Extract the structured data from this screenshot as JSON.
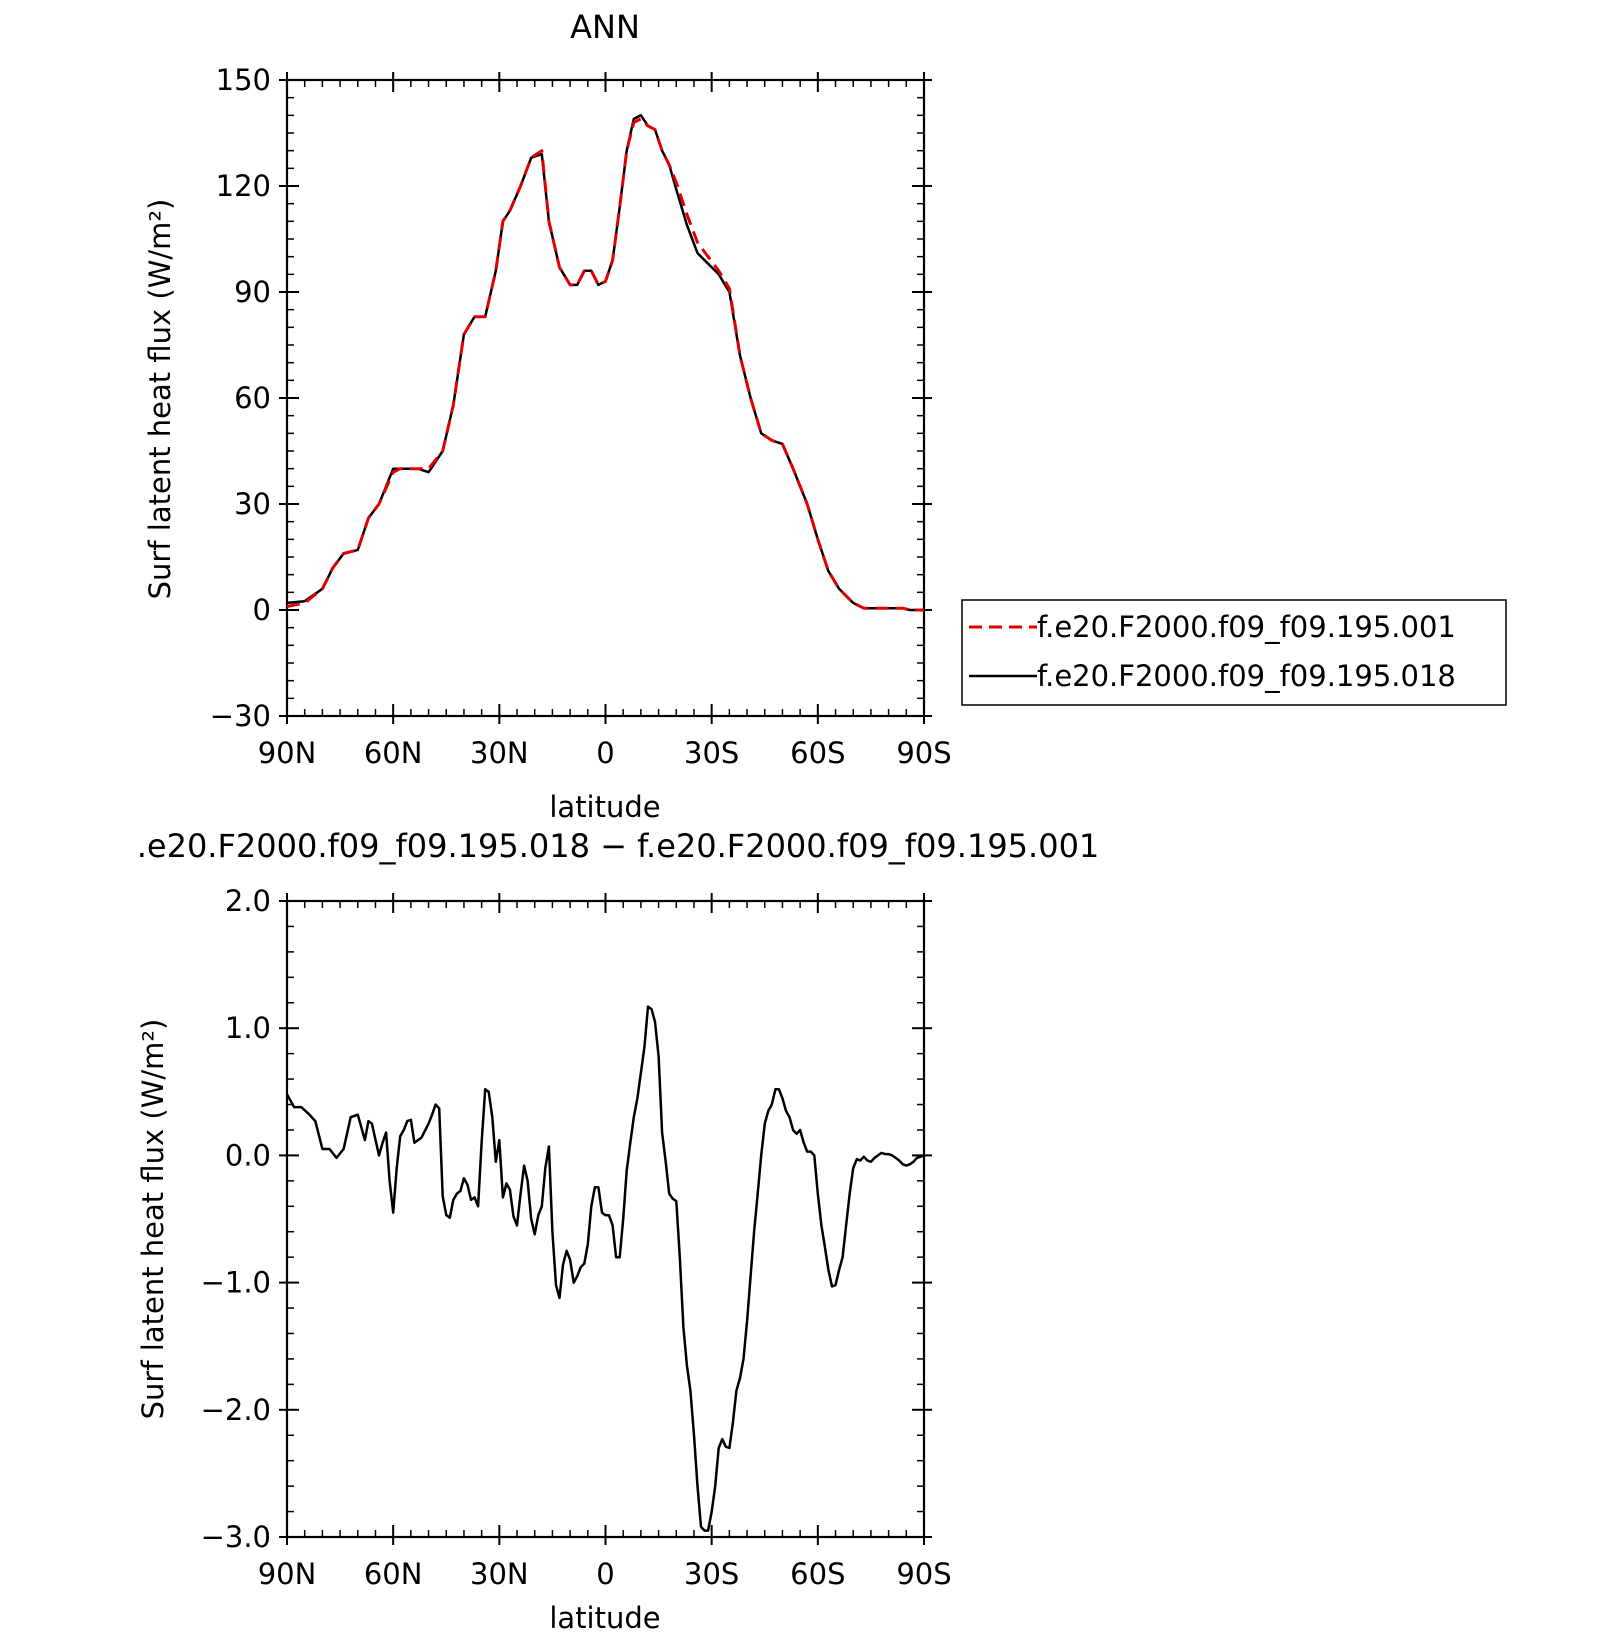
{
  "chart_data": [
    {
      "type": "line",
      "title": "ANN",
      "xlabel": "latitude",
      "ylabel": "Surf latent heat flux (W/m²)",
      "xlim": [
        90,
        -90
      ],
      "ylim": [
        -30,
        150
      ],
      "x_tick_labels": [
        "90N",
        "60N",
        "30N",
        "0",
        "30S",
        "60S",
        "90S"
      ],
      "y_tick_labels": [
        "150",
        "120",
        "90",
        "60",
        "30",
        "0",
        "−30"
      ],
      "legend_position": "right",
      "series": [
        {
          "name": "f.e20.F2000.f09_f09.195.001",
          "color": "#e00000",
          "dash": "dashed",
          "x": [
            90,
            85,
            80,
            77,
            74,
            70,
            67,
            64,
            60,
            58,
            56,
            53,
            50,
            46,
            43,
            40,
            37,
            34,
            31,
            29,
            27,
            24,
            21,
            18,
            16,
            13,
            10,
            8,
            6,
            4,
            2,
            0,
            -2,
            -4,
            -6,
            -8,
            -10,
            -12,
            -14,
            -16,
            -18,
            -20,
            -23,
            -26,
            -29,
            -32,
            -35,
            -38,
            -41,
            -44,
            -47,
            -50,
            -53,
            -57,
            -60,
            -63,
            -66,
            -68,
            -70,
            -73,
            -76,
            -78,
            -80,
            -82,
            -84,
            -86,
            -88,
            -90
          ],
          "values": [
            1,
            2,
            6,
            12,
            16,
            17,
            26,
            30,
            39,
            40,
            40,
            40,
            40,
            45,
            58,
            78,
            83,
            83,
            96,
            110,
            113,
            120,
            128,
            130,
            110,
            97,
            92,
            92,
            96,
            96,
            92,
            93,
            99,
            114,
            130,
            138,
            139,
            137,
            136,
            130,
            126,
            121,
            112,
            104,
            100,
            96,
            91,
            72,
            60,
            50,
            48,
            47,
            40,
            30,
            20,
            11,
            6,
            4,
            2,
            0.5,
            0.5,
            0.5,
            0.5,
            0.5,
            0.5,
            0,
            0,
            0
          ]
        },
        {
          "name": "f.e20.F2000.f09_f09.195.018",
          "color": "#000000",
          "dash": "solid",
          "x": [
            90,
            85,
            80,
            77,
            74,
            70,
            67,
            64,
            60,
            58,
            56,
            53,
            50,
            46,
            43,
            40,
            37,
            34,
            31,
            29,
            27,
            24,
            21,
            18,
            16,
            13,
            10,
            8,
            6,
            4,
            2,
            0,
            -2,
            -4,
            -6,
            -8,
            -10,
            -12,
            -14,
            -16,
            -18,
            -20,
            -23,
            -26,
            -29,
            -32,
            -35,
            -38,
            -41,
            -44,
            -47,
            -50,
            -53,
            -57,
            -60,
            -63,
            -66,
            -68,
            -70,
            -73,
            -76,
            -78,
            -80,
            -82,
            -84,
            -86,
            -88,
            -90
          ],
          "values": [
            2,
            2.5,
            6,
            12,
            16,
            17,
            26,
            30,
            40,
            40,
            40,
            40,
            39,
            45,
            58,
            78,
            83,
            83,
            96,
            110,
            113,
            120,
            128,
            129,
            110,
            97,
            92,
            92,
            96,
            96,
            92,
            93,
            99,
            114,
            130,
            139,
            140,
            137,
            136,
            130,
            126,
            119,
            109,
            101,
            98,
            95,
            90,
            72,
            60,
            50,
            48,
            47,
            40,
            30,
            20,
            11,
            6,
            4,
            2,
            0.5,
            0.5,
            0.5,
            0.5,
            0.5,
            0.5,
            0,
            0,
            0
          ]
        }
      ]
    },
    {
      "type": "line",
      "title": ".e20.F2000.f09_f09.195.018 − f.e20.F2000.f09_f09.195.001",
      "xlabel": "latitude",
      "ylabel": "Surf latent heat flux (W/m²)",
      "xlim": [
        90,
        -90
      ],
      "ylim": [
        -3.0,
        2.0
      ],
      "x_tick_labels": [
        "90N",
        "60N",
        "30N",
        "0",
        "30S",
        "60S",
        "90S"
      ],
      "y_tick_labels": [
        "2.0",
        "1.0",
        "0.0",
        "−1.0",
        "−2.0",
        "−3.0"
      ],
      "series": [
        {
          "color": "#000000",
          "dash": "solid",
          "x": [
            90,
            88,
            86,
            84,
            82,
            80,
            78,
            76,
            74,
            72,
            70,
            68,
            67,
            66,
            64,
            63,
            62,
            61,
            60,
            59,
            58,
            57,
            56,
            55,
            54,
            52,
            50,
            49,
            48,
            47,
            46,
            45,
            44,
            43,
            42,
            41,
            40,
            39,
            38,
            37,
            36,
            35,
            34,
            33,
            32,
            31,
            30,
            29,
            28,
            27,
            26,
            25,
            24,
            23,
            22,
            21,
            20,
            19,
            18,
            17,
            16,
            15,
            14,
            13,
            12,
            11,
            10,
            9,
            8,
            7,
            6,
            5,
            4,
            3,
            2,
            1,
            0,
            -1,
            -2,
            -3,
            -4,
            -5,
            -6,
            -7,
            -8,
            -9,
            -10,
            -11,
            -12,
            -13,
            -14,
            -15,
            -16,
            -17,
            -18,
            -19,
            -20,
            -21,
            -22,
            -23,
            -24,
            -25,
            -26,
            -27,
            -28,
            -29,
            -30,
            -31,
            -32,
            -33,
            -34,
            -35,
            -36,
            -37,
            -38,
            -39,
            -40,
            -41,
            -42,
            -43,
            -44,
            -45,
            -46,
            -47,
            -48,
            -49,
            -50,
            -51,
            -52,
            -53,
            -54,
            -55,
            -56,
            -57,
            -58,
            -59,
            -60,
            -61,
            -62,
            -63,
            -64,
            -65,
            -66,
            -67,
            -68,
            -69,
            -70,
            -71,
            -72,
            -73,
            -74,
            -75,
            -76,
            -77,
            -78,
            -79,
            -80,
            -81,
            -82,
            -83,
            -84,
            -85,
            -86,
            -87,
            -88,
            -89,
            -90
          ],
          "values": [
            0.48,
            0.38,
            0.38,
            0.33,
            0.27,
            0.05,
            0.05,
            -0.02,
            0.05,
            0.3,
            0.32,
            0.12,
            0.27,
            0.25,
            0.0,
            0.1,
            0.18,
            -0.2,
            -0.45,
            -0.1,
            0.15,
            0.2,
            0.27,
            0.28,
            0.1,
            0.14,
            0.25,
            0.32,
            0.4,
            0.37,
            -0.32,
            -0.47,
            -0.49,
            -0.35,
            -0.3,
            -0.28,
            -0.18,
            -0.23,
            -0.35,
            -0.33,
            -0.4,
            0.1,
            0.52,
            0.5,
            0.3,
            -0.05,
            0.12,
            -0.33,
            -0.22,
            -0.27,
            -0.48,
            -0.55,
            -0.3,
            -0.08,
            -0.2,
            -0.5,
            -0.62,
            -0.47,
            -0.4,
            -0.1,
            0.07,
            -0.6,
            -1.02,
            -1.12,
            -0.86,
            -0.75,
            -0.82,
            -1.0,
            -0.95,
            -0.88,
            -0.85,
            -0.7,
            -0.4,
            -0.25,
            -0.25,
            -0.45,
            -0.47,
            -0.47,
            -0.55,
            -0.8,
            -0.8,
            -0.5,
            -0.12,
            0.1,
            0.3,
            0.45,
            0.65,
            0.85,
            1.17,
            1.15,
            1.05,
            0.78,
            0.18,
            -0.05,
            -0.3,
            -0.34,
            -0.36,
            -0.8,
            -1.35,
            -1.65,
            -1.85,
            -2.2,
            -2.6,
            -2.92,
            -2.95,
            -2.95,
            -2.8,
            -2.6,
            -2.3,
            -2.23,
            -2.29,
            -2.3,
            -2.1,
            -1.85,
            -1.75,
            -1.6,
            -1.3,
            -0.95,
            -0.6,
            -0.3,
            0.0,
            0.25,
            0.35,
            0.4,
            0.52,
            0.52,
            0.45,
            0.35,
            0.3,
            0.2,
            0.17,
            0.2,
            0.1,
            0.03,
            0.03,
            0.0,
            -0.3,
            -0.55,
            -0.72,
            -0.9,
            -1.03,
            -1.02,
            -0.9,
            -0.8,
            -0.55,
            -0.3,
            -0.1,
            -0.03,
            -0.04,
            -0.01,
            -0.04,
            -0.05,
            -0.02,
            0.0,
            0.02,
            0.01,
            0.01,
            0.0,
            -0.02,
            -0.04,
            -0.07,
            -0.08,
            -0.07,
            -0.05,
            -0.02,
            -0.01,
            0.0
          ]
        }
      ]
    }
  ]
}
